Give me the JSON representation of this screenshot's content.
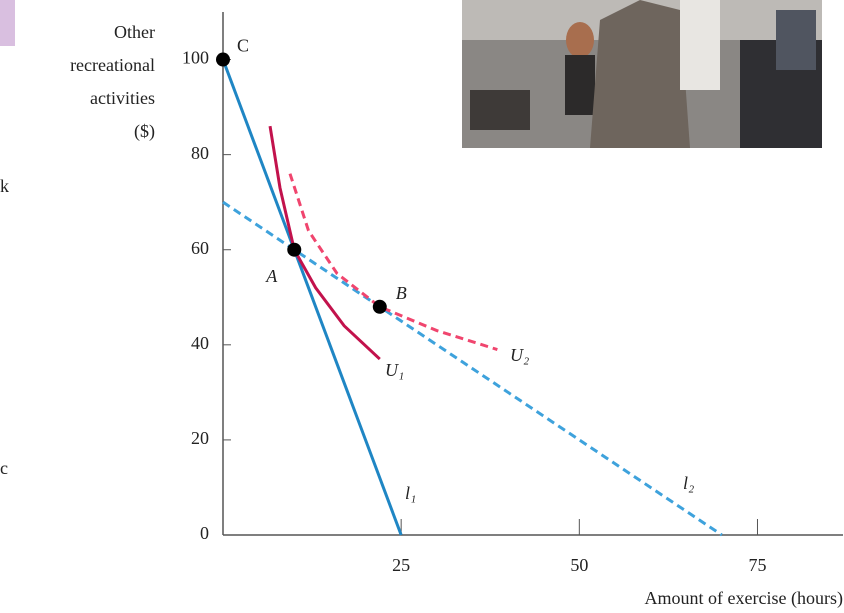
{
  "chart_data": {
    "type": "line",
    "y_label_lines": [
      "Other",
      "recreational",
      "activities",
      "($)"
    ],
    "x_label": "Amount of exercise (hours)",
    "xlim": [
      0,
      87
    ],
    "ylim": [
      0,
      110
    ],
    "xticks": [
      25,
      50,
      75
    ],
    "yticks": [
      0,
      20,
      40,
      60,
      80,
      100
    ],
    "grid": false,
    "series": [
      {
        "name": "l₁",
        "color": "#1f86c4",
        "dashed": false,
        "x": [
          0,
          25
        ],
        "values": [
          100,
          0
        ]
      },
      {
        "name": "l₂",
        "color": "#3ea2dc",
        "dashed": true,
        "x": [
          0,
          70
        ],
        "values": [
          70,
          0
        ]
      },
      {
        "name": "U₁",
        "color": "#c2124c",
        "dashed": false,
        "x": [
          6.6,
          8,
          10,
          13,
          17,
          22
        ],
        "values": [
          86,
          73,
          60,
          52,
          44,
          37
        ]
      },
      {
        "name": "U₂",
        "color": "#f0456e",
        "dashed": true,
        "x": [
          9.4,
          12,
          16,
          22,
          30,
          38.5
        ],
        "values": [
          76,
          64,
          55,
          48,
          43,
          39
        ]
      }
    ],
    "points": [
      {
        "label": "C",
        "x": 0,
        "y": 100
      },
      {
        "label": "A",
        "x": 10,
        "y": 60
      },
      {
        "label": "B",
        "x": 22,
        "y": 48
      }
    ]
  },
  "side_fragments": [
    "k",
    "c"
  ]
}
